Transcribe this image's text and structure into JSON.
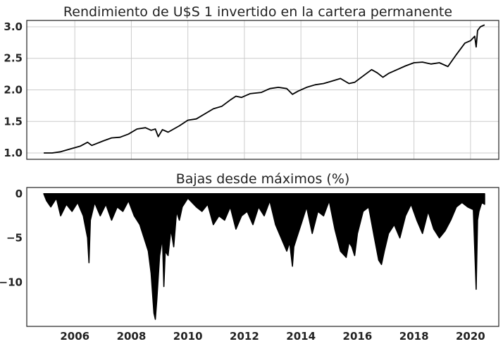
{
  "chart_data": [
    {
      "type": "line",
      "title": "Rendimiento de U$S 1 invertido en la cartera permanente",
      "xlabel": "",
      "ylabel": "",
      "xlim": [
        2004.3,
        2021.0
      ],
      "ylim": [
        0.9,
        3.1
      ],
      "yticks": [
        "1.0",
        "1.5",
        "2.0",
        "2.5",
        "3.0"
      ],
      "xticks": [
        "2006",
        "2008",
        "2010",
        "2012",
        "2014",
        "2016",
        "2018",
        "2020"
      ],
      "grid": true,
      "legend": "none",
      "color": "#000000",
      "series": [
        {
          "x": [
            2004.9,
            2005.2,
            2005.5,
            2005.8,
            2006.2,
            2006.45,
            2006.6,
            2007.0,
            2007.3,
            2007.6,
            2007.9,
            2008.2,
            2008.5,
            2008.7,
            2008.85,
            2008.95,
            2009.1,
            2009.3,
            2009.5,
            2009.7,
            2010.0,
            2010.3,
            2010.6,
            2010.9,
            2011.2,
            2011.5,
            2011.7,
            2011.9,
            2012.2,
            2012.6,
            2012.9,
            2013.2,
            2013.5,
            2013.7,
            2013.9,
            2014.2,
            2014.5,
            2014.8,
            2015.1,
            2015.4,
            2015.7,
            2015.9,
            2016.2,
            2016.5,
            2016.7,
            2016.9,
            2017.1,
            2017.4,
            2017.7,
            2018.0,
            2018.3,
            2018.6,
            2018.9,
            2019.2,
            2019.5,
            2019.8,
            2020.0,
            2020.15,
            2020.2,
            2020.25,
            2020.35,
            2020.5
          ],
          "y": [
            1.0,
            1.0,
            1.02,
            1.06,
            1.11,
            1.17,
            1.12,
            1.19,
            1.24,
            1.25,
            1.3,
            1.38,
            1.4,
            1.36,
            1.38,
            1.26,
            1.37,
            1.33,
            1.38,
            1.43,
            1.52,
            1.54,
            1.62,
            1.7,
            1.74,
            1.84,
            1.9,
            1.88,
            1.94,
            1.96,
            2.02,
            2.04,
            2.02,
            1.93,
            1.98,
            2.04,
            2.08,
            2.1,
            2.14,
            2.18,
            2.1,
            2.12,
            2.22,
            2.32,
            2.27,
            2.2,
            2.26,
            2.32,
            2.38,
            2.43,
            2.44,
            2.41,
            2.43,
            2.37,
            2.56,
            2.74,
            2.78,
            2.85,
            2.68,
            2.94,
            3.0,
            3.03
          ]
        }
      ]
    },
    {
      "type": "area",
      "title": "Bajas desde máximos (%)",
      "xlabel": "",
      "ylabel": "",
      "xlim": [
        2004.3,
        2021.0
      ],
      "ylim": [
        -15,
        0.7
      ],
      "yticks": [
        "0",
        "−5",
        "−10"
      ],
      "xticks": [
        "2006",
        "2008",
        "2010",
        "2012",
        "2014",
        "2016",
        "2018",
        "2020"
      ],
      "grid": false,
      "legend": "none",
      "color": "#000000",
      "series": [
        {
          "x": [
            2004.9,
            2005.0,
            2005.15,
            2005.35,
            2005.5,
            2005.7,
            2005.9,
            2006.1,
            2006.3,
            2006.45,
            2006.5,
            2006.55,
            2006.7,
            2006.9,
            2007.1,
            2007.3,
            2007.5,
            2007.7,
            2007.9,
            2008.1,
            2008.3,
            2008.5,
            2008.6,
            2008.7,
            2008.8,
            2008.85,
            2008.9,
            2009.0,
            2009.1,
            2009.15,
            2009.2,
            2009.3,
            2009.4,
            2009.5,
            2009.6,
            2009.7,
            2009.8,
            2009.9,
            2010.0,
            2010.3,
            2010.5,
            2010.7,
            2010.9,
            2011.1,
            2011.3,
            2011.5,
            2011.7,
            2011.9,
            2012.1,
            2012.3,
            2012.5,
            2012.7,
            2012.9,
            2013.1,
            2013.3,
            2013.5,
            2013.6,
            2013.7,
            2013.75,
            2013.85,
            2014.0,
            2014.2,
            2014.4,
            2014.6,
            2014.8,
            2015.0,
            2015.2,
            2015.4,
            2015.6,
            2015.7,
            2015.8,
            2015.9,
            2016.0,
            2016.2,
            2016.4,
            2016.6,
            2016.75,
            2016.85,
            2016.95,
            2017.1,
            2017.3,
            2017.5,
            2017.7,
            2017.9,
            2018.1,
            2018.3,
            2018.5,
            2018.7,
            2018.9,
            2019.1,
            2019.3,
            2019.5,
            2019.7,
            2019.9,
            2020.1,
            2020.2,
            2020.25,
            2020.3,
            2020.4,
            2020.5
          ],
          "y": [
            0,
            -0.8,
            -1.5,
            -0.5,
            -2.5,
            -1.2,
            -2.0,
            -1.0,
            -2.5,
            -5.0,
            -7.8,
            -3.0,
            -1.0,
            -2.5,
            -1.2,
            -3.0,
            -1.5,
            -2.0,
            -0.8,
            -2.5,
            -3.5,
            -5.5,
            -6.5,
            -9.0,
            -13.5,
            -14.2,
            -12.0,
            -7.0,
            -5.0,
            -10.5,
            -6.5,
            -7.0,
            -4.0,
            -6.0,
            -2.0,
            -3.0,
            -1.5,
            -1.0,
            -0.5,
            -1.5,
            -2.0,
            -1.2,
            -3.5,
            -2.5,
            -3.0,
            -1.5,
            -4.0,
            -2.5,
            -2.0,
            -3.5,
            -1.5,
            -2.5,
            -0.8,
            -3.5,
            -5.0,
            -6.5,
            -5.5,
            -8.2,
            -6.0,
            -5.0,
            -3.5,
            -1.5,
            -4.5,
            -2.0,
            -2.5,
            -0.8,
            -4.0,
            -6.5,
            -7.2,
            -5.5,
            -6.0,
            -7.0,
            -4.5,
            -2.0,
            -1.5,
            -5.0,
            -7.5,
            -8.0,
            -6.5,
            -4.5,
            -3.5,
            -5.0,
            -2.5,
            -1.2,
            -3.0,
            -4.5,
            -2.0,
            -4.0,
            -5.0,
            -4.2,
            -3.0,
            -1.5,
            -1.0,
            -1.5,
            -1.8,
            -10.8,
            -3.0,
            -2.0,
            -1.0,
            -1.2
          ]
        }
      ]
    }
  ]
}
